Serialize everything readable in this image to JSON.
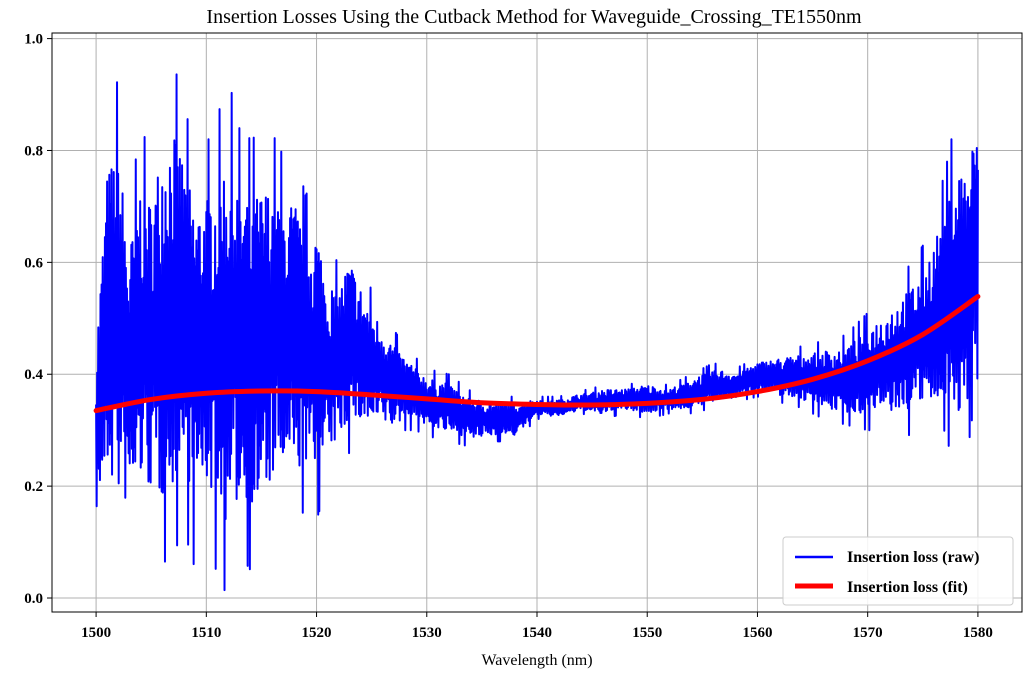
{
  "chart_data": {
    "type": "line",
    "title": "Insertion Losses Using the Cutback Method for Waveguide_Crossing_TE1550nm",
    "xlabel": "Wavelength (nm)",
    "ylabel": "",
    "xlim": [
      1496,
      1584
    ],
    "ylim": [
      -0.025,
      1.01
    ],
    "xticks": [
      1500,
      1510,
      1520,
      1530,
      1540,
      1550,
      1560,
      1570,
      1580
    ],
    "yticks": [
      0.0,
      0.2,
      0.4,
      0.6,
      0.8,
      1.0
    ],
    "xtick_labels": [
      "1500",
      "1510",
      "1520",
      "1530",
      "1540",
      "1550",
      "1560",
      "1570",
      "1580"
    ],
    "ytick_labels": [
      "0.0",
      "0.2",
      "0.4",
      "0.6",
      "0.8",
      "1.0"
    ],
    "grid": true,
    "legend_position": "bottom-right",
    "series": [
      {
        "name": "Insertion loss (raw)",
        "color": "#0000ff",
        "x": [
          1500,
          1501,
          1502,
          1503,
          1504,
          1505,
          1506,
          1507,
          1508,
          1509,
          1510,
          1511,
          1512,
          1513,
          1514,
          1515,
          1516,
          1517,
          1518,
          1519,
          1520,
          1521,
          1522,
          1523,
          1524,
          1525,
          1526,
          1527,
          1528,
          1529,
          1530,
          1532,
          1534,
          1536,
          1538,
          1540,
          1542,
          1544,
          1546,
          1548,
          1550,
          1552,
          1554,
          1556,
          1558,
          1560,
          1562,
          1564,
          1566,
          1568,
          1570,
          1572,
          1574,
          1575,
          1576,
          1577,
          1578,
          1579,
          1580
        ],
        "upper": [
          0.51,
          0.85,
          0.93,
          0.7,
          0.84,
          0.8,
          0.93,
          0.96,
          0.88,
          0.8,
          0.81,
          0.86,
          0.93,
          0.84,
          0.82,
          0.83,
          0.83,
          0.79,
          0.8,
          0.72,
          0.75,
          0.62,
          0.6,
          0.66,
          0.6,
          0.55,
          0.52,
          0.48,
          0.45,
          0.43,
          0.41,
          0.4,
          0.37,
          0.36,
          0.36,
          0.36,
          0.36,
          0.37,
          0.38,
          0.38,
          0.39,
          0.38,
          0.4,
          0.42,
          0.41,
          0.43,
          0.44,
          0.45,
          0.46,
          0.47,
          0.51,
          0.55,
          0.6,
          0.63,
          0.69,
          0.76,
          0.86,
          0.85,
          0.92
        ],
        "lower": [
          0.1,
          0.13,
          0.07,
          0.08,
          0.12,
          0.1,
          0.06,
          0.08,
          0.12,
          0.05,
          0.12,
          0.04,
          0.0,
          0.08,
          0.05,
          0.06,
          0.12,
          0.14,
          0.13,
          0.16,
          0.14,
          0.2,
          0.24,
          0.26,
          0.27,
          0.27,
          0.28,
          0.28,
          0.3,
          0.3,
          0.29,
          0.28,
          0.27,
          0.28,
          0.28,
          0.32,
          0.32,
          0.33,
          0.32,
          0.33,
          0.32,
          0.33,
          0.33,
          0.34,
          0.35,
          0.36,
          0.35,
          0.34,
          0.32,
          0.31,
          0.3,
          0.3,
          0.29,
          0.31,
          0.28,
          0.3,
          0.22,
          0.25,
          0.4
        ]
      },
      {
        "name": "Insertion loss (fit)",
        "color": "#ff0000",
        "x": [
          1500,
          1505,
          1510,
          1515,
          1520,
          1525,
          1530,
          1535,
          1540,
          1545,
          1550,
          1555,
          1560,
          1565,
          1570,
          1575,
          1580
        ],
        "values": [
          0.335,
          0.355,
          0.366,
          0.37,
          0.369,
          0.363,
          0.356,
          0.349,
          0.346,
          0.345,
          0.348,
          0.355,
          0.369,
          0.391,
          0.424,
          0.471,
          0.539
        ]
      }
    ]
  }
}
